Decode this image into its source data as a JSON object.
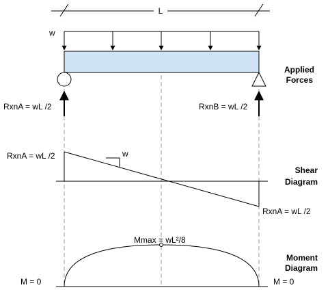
{
  "dimension": {
    "span_label": "L"
  },
  "load": {
    "label": "w",
    "beam_fill": "#cfe3f5"
  },
  "applied_forces": {
    "title_line1": "Applied",
    "title_line2": "Forces",
    "reaction_a": "RxnA = wL /2",
    "reaction_b": "RxnB = wL /2"
  },
  "shear_diagram": {
    "title_line1": "Shear",
    "title_line2": "Diagram",
    "left_label": "RxnA = wL /2",
    "right_label": "RxnA = wL /2",
    "slope_label": "w"
  },
  "moment_diagram": {
    "title_line1": "Moment",
    "title_line2": "Diagram",
    "max_label": "Mmax = wL²/8",
    "left_label": "M = 0",
    "right_label": "M = 0"
  }
}
